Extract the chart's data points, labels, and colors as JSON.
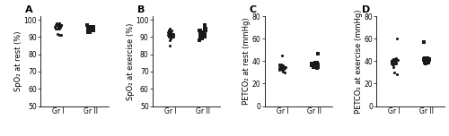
{
  "panels": [
    {
      "label": "A",
      "ylabel": "SpO₂ at rest (%)",
      "ylim": [
        50,
        102
      ],
      "yticks": [
        50,
        60,
        70,
        80,
        90,
        100
      ],
      "groups": [
        "Gr I",
        "Gr II"
      ],
      "group1_marker": "o",
      "group2_marker": "s",
      "data_gr1": [
        97,
        97,
        97,
        98,
        97,
        97,
        97,
        98,
        97,
        96,
        96,
        97,
        96,
        95,
        97,
        97,
        96,
        96,
        97,
        97,
        98,
        97,
        96,
        95,
        92,
        91,
        91,
        95,
        96,
        97
      ],
      "data_gr2": [
        97,
        96,
        96,
        97,
        95,
        96,
        95,
        95,
        94,
        95,
        94,
        95,
        94,
        93,
        94,
        94,
        95,
        96,
        95,
        94,
        96,
        95,
        94,
        95,
        96,
        95,
        94,
        93,
        95,
        94
      ]
    },
    {
      "label": "B",
      "ylabel": "SpO₂ at exercise (%)",
      "ylim": [
        50,
        102
      ],
      "yticks": [
        50,
        60,
        70,
        80,
        90,
        100
      ],
      "groups": [
        "Gr I",
        "Gr II"
      ],
      "group1_marker": "o",
      "group2_marker": "s",
      "data_gr1": [
        95,
        94,
        93,
        91,
        93,
        94,
        92,
        91,
        90,
        91,
        90,
        89,
        88,
        92,
        93,
        91,
        93,
        92,
        90,
        91,
        92,
        92,
        91,
        90,
        85,
        93,
        94,
        92,
        91,
        90
      ],
      "data_gr2": [
        97,
        96,
        96,
        95,
        94,
        95,
        93,
        94,
        93,
        94,
        93,
        92,
        91,
        90,
        91,
        92,
        91,
        92,
        93,
        93,
        90,
        91,
        90,
        89,
        88,
        94,
        93,
        92,
        91,
        90
      ]
    },
    {
      "label": "C",
      "ylabel": "PETCO₂ at rest (mmHg)",
      "ylim": [
        0,
        80
      ],
      "yticks": [
        0,
        20,
        40,
        60,
        80
      ],
      "groups": [
        "Gr I",
        "Gr II"
      ],
      "group1_marker": "o",
      "group2_marker": "s",
      "data_gr1": [
        30,
        31,
        32,
        33,
        34,
        35,
        36,
        33,
        34,
        35,
        36,
        37,
        35,
        34,
        33,
        32,
        36,
        35,
        34,
        33,
        35,
        36,
        37,
        36,
        35,
        34,
        33,
        35,
        36,
        45
      ],
      "data_gr2": [
        34,
        35,
        36,
        37,
        38,
        35,
        36,
        37,
        38,
        39,
        37,
        36,
        35,
        38,
        39,
        37,
        36,
        35,
        37,
        38,
        39,
        36,
        37,
        38,
        36,
        37,
        38,
        39,
        47,
        37
      ]
    },
    {
      "label": "D",
      "ylabel": "PETCO₂ at exercise (mmHg)",
      "ylim": [
        0,
        80
      ],
      "yticks": [
        0,
        20,
        40,
        60,
        80
      ],
      "groups": [
        "Gr I",
        "Gr II"
      ],
      "group1_marker": "o",
      "group2_marker": "s",
      "data_gr1": [
        38,
        40,
        41,
        39,
        37,
        42,
        40,
        41,
        38,
        39,
        42,
        43,
        41,
        40,
        39,
        38,
        40,
        42,
        39,
        41,
        60,
        35,
        30,
        28,
        42,
        39,
        40,
        41,
        38,
        37
      ],
      "data_gr2": [
        41,
        42,
        43,
        40,
        41,
        42,
        39,
        40,
        41,
        43,
        42,
        41,
        40,
        39,
        42,
        41,
        40,
        43,
        42,
        41,
        38,
        39,
        40,
        57,
        41,
        42,
        40,
        39,
        41,
        42
      ]
    }
  ],
  "dot_color": "#1a1a1a",
  "dot_size_circle": 5,
  "dot_size_square": 5,
  "jitter_strength": 0.1,
  "figure_bg": "#ffffff",
  "axes_linewidth": 0.6,
  "label_fontsize": 6.0,
  "tick_fontsize": 5.5,
  "panel_label_fontsize": 8,
  "panel_label_fontweight": "bold"
}
